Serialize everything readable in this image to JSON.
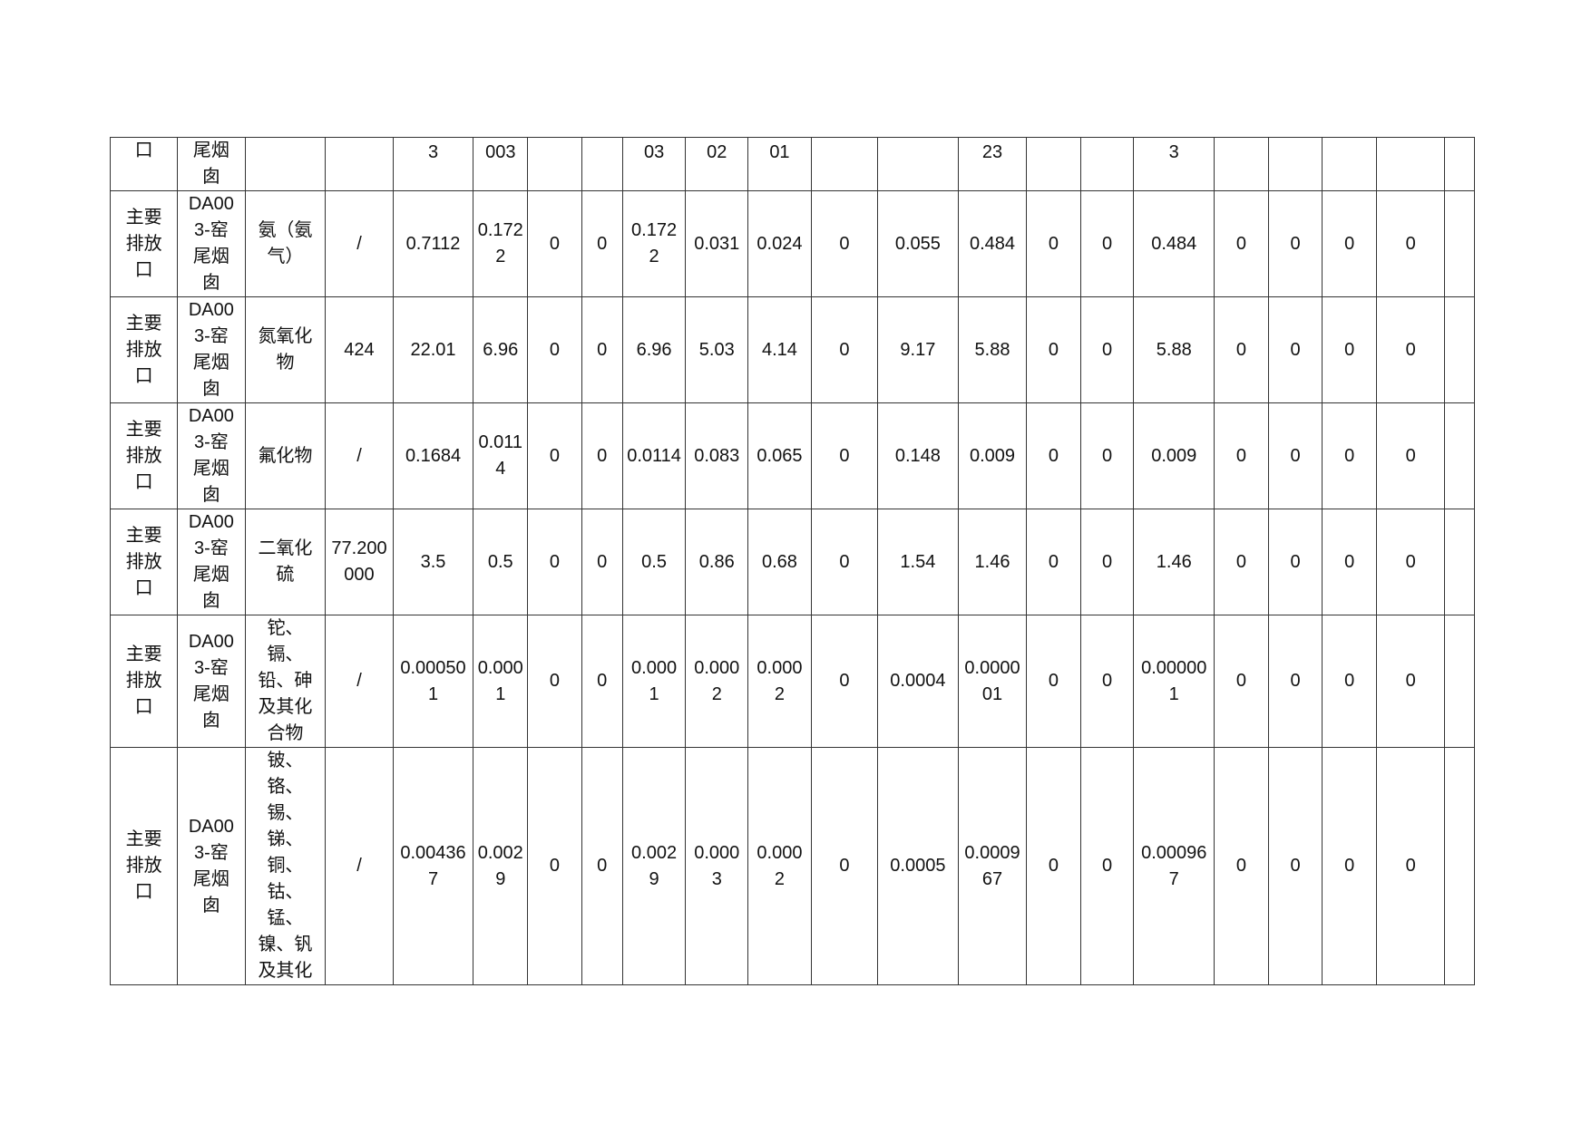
{
  "table": {
    "rows": [
      [
        "口",
        "尾烟囱",
        "",
        "",
        "3",
        "003",
        "",
        "",
        "03",
        "02",
        "01",
        "",
        "",
        "23",
        "",
        "",
        "3",
        "",
        "",
        "",
        "",
        ""
      ],
      [
        "主要排放口",
        "DA003-窑尾烟囱",
        "氨（氨气）",
        "/",
        "0.7112",
        "0.1722",
        "0",
        "0",
        "0.1722",
        "0.031",
        "0.024",
        "0",
        "0.055",
        "0.484",
        "0",
        "0",
        "0.484",
        "0",
        "0",
        "0",
        "0",
        ""
      ],
      [
        "主要排放口",
        "DA003-窑尾烟囱",
        "氮氧化物",
        "424",
        "22.01",
        "6.96",
        "0",
        "0",
        "6.96",
        "5.03",
        "4.14",
        "0",
        "9.17",
        "5.88",
        "0",
        "0",
        "5.88",
        "0",
        "0",
        "0",
        "0",
        ""
      ],
      [
        "主要排放口",
        "DA003-窑尾烟囱",
        "氟化物",
        "/",
        "0.1684",
        "0.0114",
        "0",
        "0",
        "0.0114",
        "0.083",
        "0.065",
        "0",
        "0.148",
        "0.009",
        "0",
        "0",
        "0.009",
        "0",
        "0",
        "0",
        "0",
        ""
      ],
      [
        "主要排放口",
        "DA003-窑尾烟囱",
        "二氧化硫",
        "77.200000",
        "3.5",
        "0.5",
        "0",
        "0",
        "0.5",
        "0.86",
        "0.68",
        "0",
        "1.54",
        "1.46",
        "0",
        "0",
        "1.46",
        "0",
        "0",
        "0",
        "0",
        ""
      ],
      [
        "主要排放口",
        "DA003-窑尾烟囱",
        "铊、镉、铅、砷及其化合物",
        "/",
        "0.000501",
        "0.0001",
        "0",
        "0",
        "0.0001",
        "0.0002",
        "0.0002",
        "0",
        "0.0004",
        "0.000001",
        "0",
        "0",
        "0.000001",
        "0",
        "0",
        "0",
        "0",
        ""
      ],
      [
        "主要排放口",
        "DA003-窑尾烟囱",
        "铍、铬、锡、锑、铜、钴、锰、镍、钒及其化",
        "/",
        "0.004367",
        "0.0029",
        "0",
        "0",
        "0.0029",
        "0.0003",
        "0.0002",
        "0",
        "0.0005",
        "0.000967",
        "0",
        "0",
        "0.000967",
        "0",
        "0",
        "0",
        "0",
        ""
      ]
    ]
  }
}
